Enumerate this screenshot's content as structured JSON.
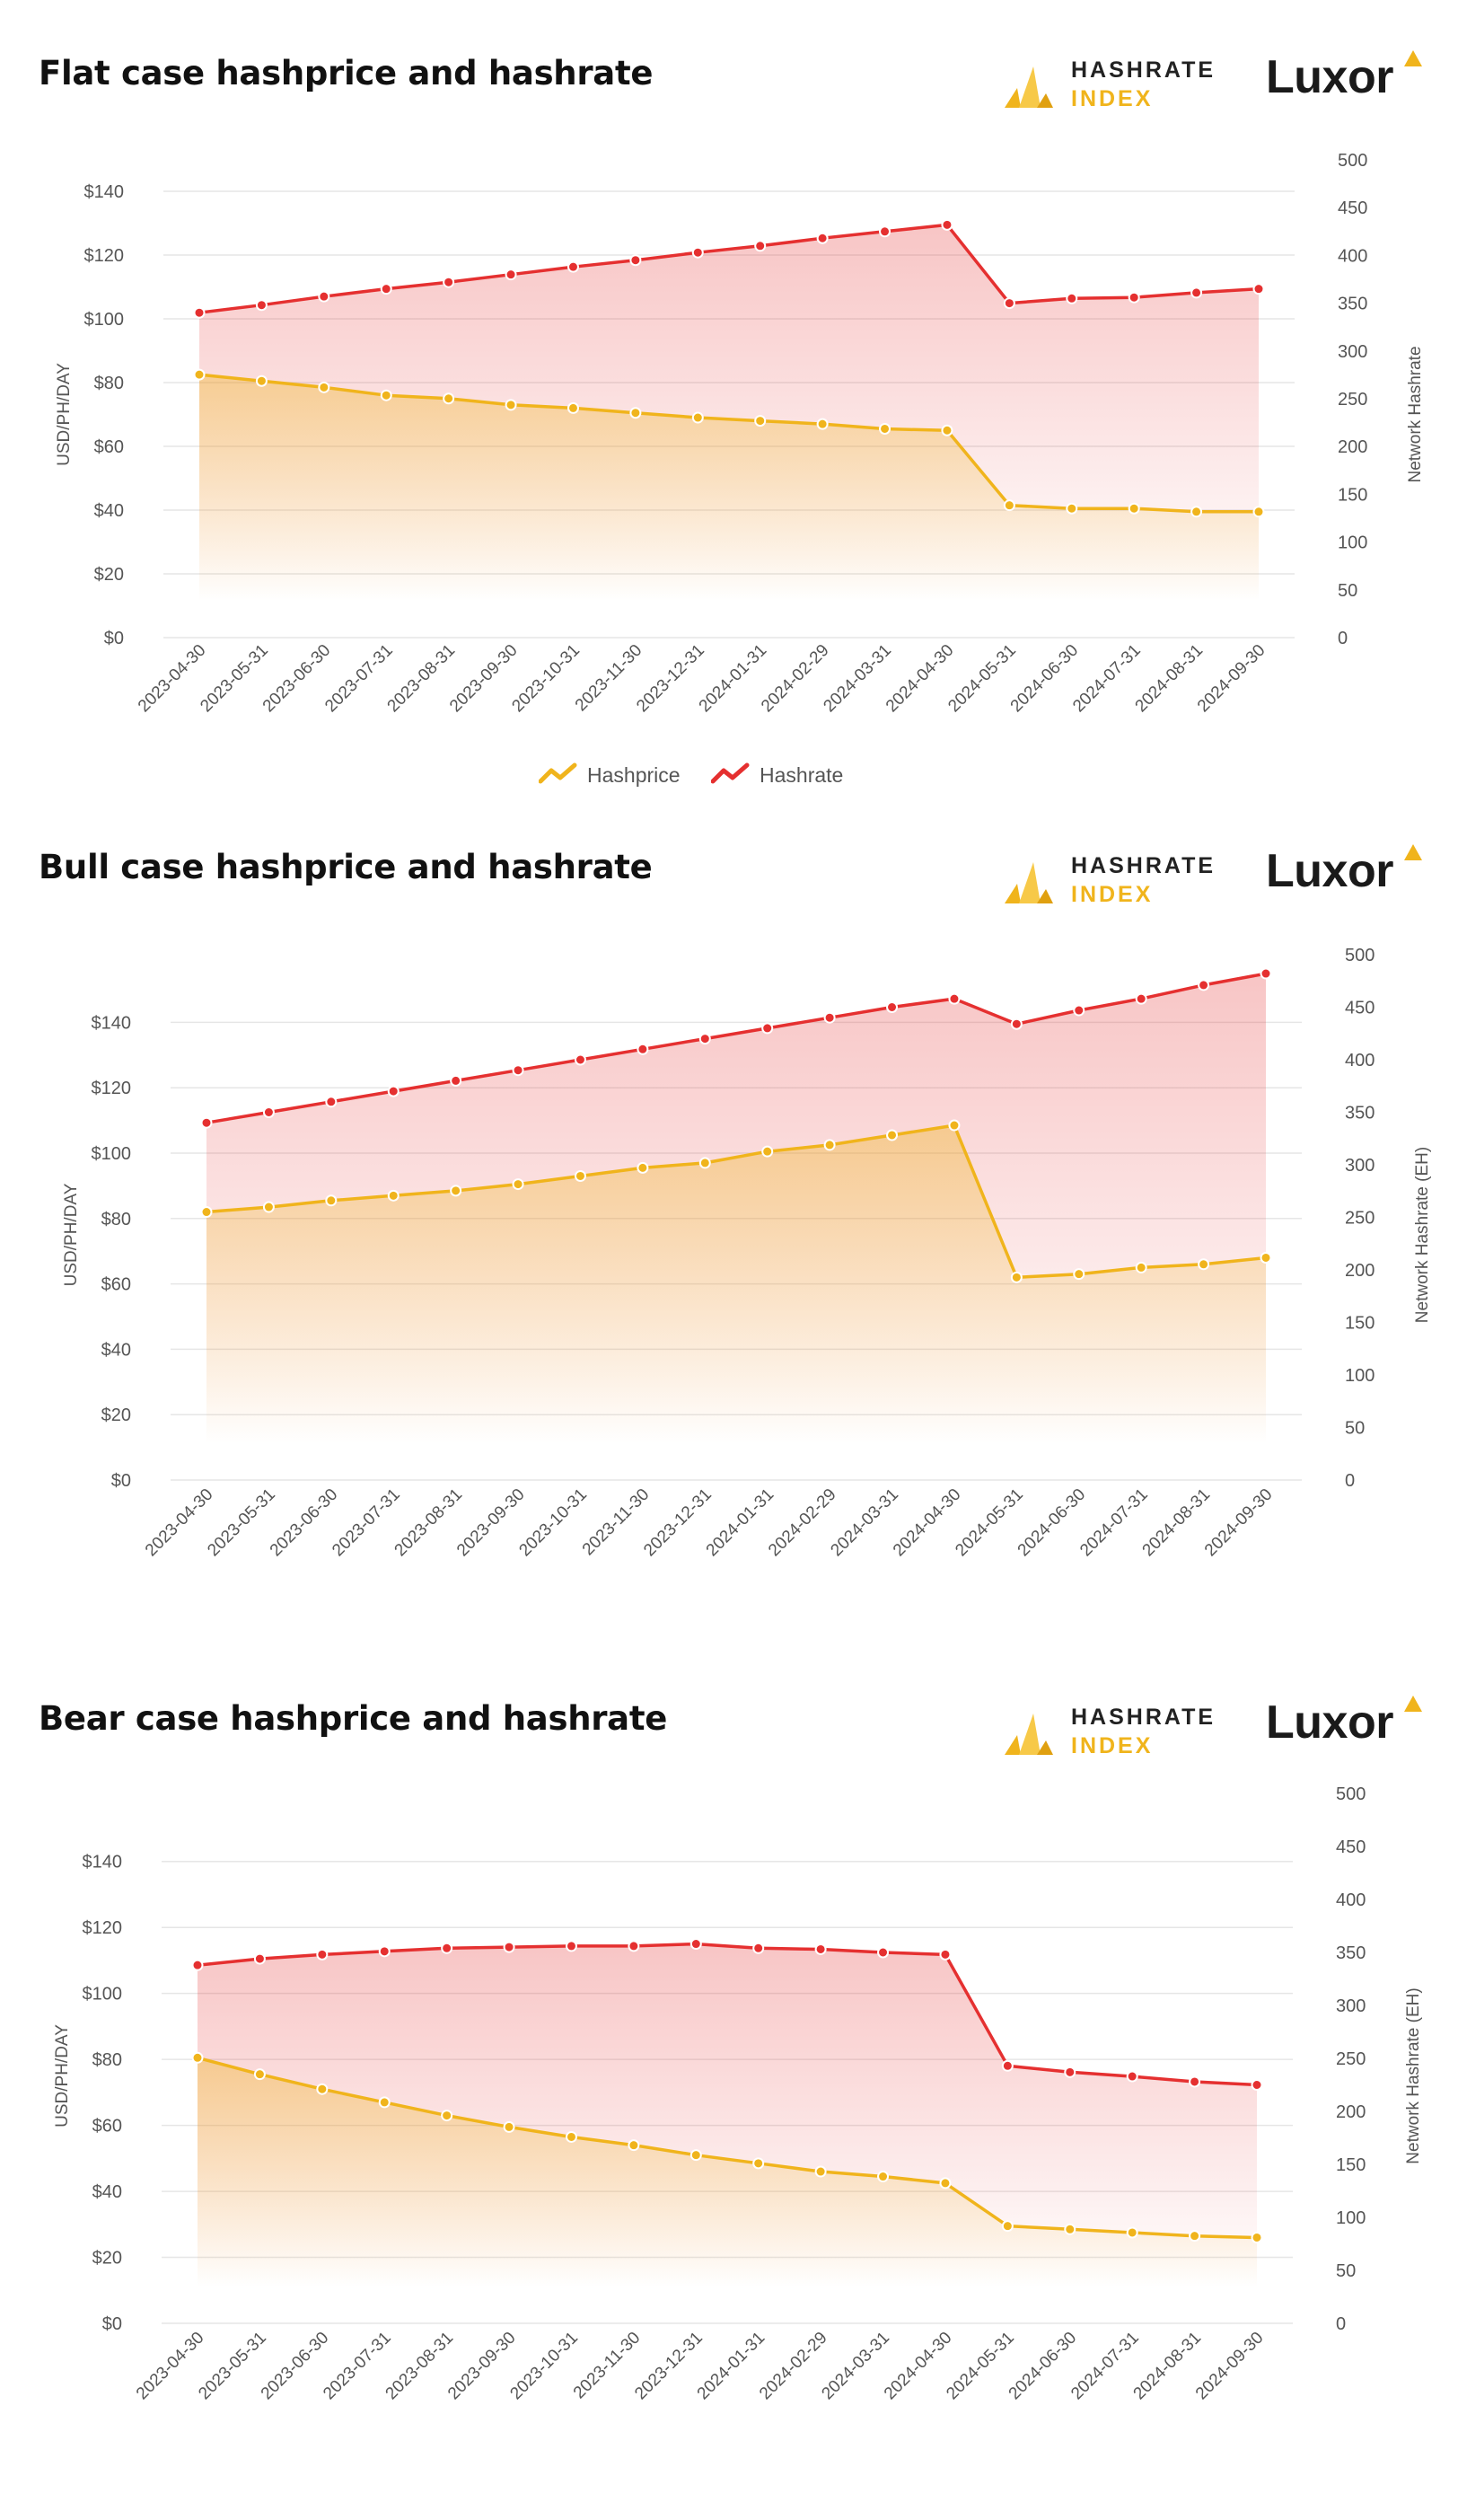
{
  "brand": {
    "hashrate_index_word1": "HASHRATE",
    "hashrate_index_word2": "INDEX",
    "luxor": "Luxor"
  },
  "colors": {
    "hashprice": "#f0b41c",
    "hashrate": "#e53030",
    "grid": "#e6e6e6",
    "axis_text": "#555555"
  },
  "legend": {
    "hashprice": "Hashprice",
    "hashrate": "Hashrate"
  },
  "chart_data": [
    {
      "type": "line",
      "title": "Flat case hashprice and hashrate",
      "x": [
        "2023-04-30",
        "2023-05-31",
        "2023-06-30",
        "2023-07-31",
        "2023-08-31",
        "2023-09-30",
        "2023-10-31",
        "2023-11-30",
        "2023-12-31",
        "2024-01-31",
        "2024-02-29",
        "2024-03-31",
        "2024-04-30",
        "2024-05-31",
        "2024-06-30",
        "2024-07-31",
        "2024-08-31",
        "2024-09-30"
      ],
      "ylabel_left": "USD/PH/DAY",
      "ylabel_right": "Network Hashrate",
      "ylim_left": [
        0,
        140
      ],
      "ylim_right": [
        0,
        500
      ],
      "yticks_left": [
        "$0",
        "$20",
        "$40",
        "$60",
        "$80",
        "$100",
        "$120",
        "$140"
      ],
      "yticks_right": [
        "0",
        "50",
        "100",
        "150",
        "200",
        "250",
        "300",
        "350",
        "400",
        "450",
        "500"
      ],
      "series": [
        {
          "name": "Hashprice",
          "axis": "left",
          "values": [
            82.5,
            80.5,
            78.5,
            76,
            75,
            73,
            72,
            70.5,
            69,
            68,
            67,
            65.5,
            65,
            41.5,
            40.5,
            40.5,
            39.5,
            39.5
          ]
        },
        {
          "name": "Hashrate",
          "axis": "right",
          "values": [
            340,
            348,
            357,
            365,
            372,
            380,
            388,
            395,
            403,
            410,
            418,
            425,
            432,
            350,
            355,
            356,
            361,
            365
          ]
        }
      ],
      "legend": "bottom-center",
      "grid": true
    },
    {
      "type": "line",
      "title": "Bull case hashprice and hashrate",
      "x": [
        "2023-04-30",
        "2023-05-31",
        "2023-06-30",
        "2023-07-31",
        "2023-08-31",
        "2023-09-30",
        "2023-10-31",
        "2023-11-30",
        "2023-12-31",
        "2024-01-31",
        "2024-02-29",
        "2024-03-31",
        "2024-04-30",
        "2024-05-31",
        "2024-06-30",
        "2024-07-31",
        "2024-08-31",
        "2024-09-30"
      ],
      "ylabel_left": "USD/PH/DAY",
      "ylabel_right": "Network Hashrate (EH)",
      "ylim_left": [
        0,
        150
      ],
      "ylim_right": [
        0,
        500
      ],
      "yticks_left": [
        "$0",
        "$20",
        "$40",
        "$60",
        "$80",
        "$100",
        "$120",
        "$140"
      ],
      "yticks_right": [
        "0",
        "50",
        "100",
        "150",
        "200",
        "250",
        "300",
        "350",
        "400",
        "450",
        "500"
      ],
      "series": [
        {
          "name": "Hashprice",
          "axis": "left",
          "values": [
            82,
            83.5,
            85.5,
            87,
            88.5,
            90.5,
            93,
            95.5,
            97,
            100.5,
            102.5,
            105.5,
            108.5,
            62,
            63,
            65,
            66,
            68
          ]
        },
        {
          "name": "Hashrate",
          "axis": "right",
          "values": [
            340,
            350,
            360,
            370,
            380,
            390,
            400,
            410,
            420,
            430,
            440,
            450,
            458,
            434,
            447,
            458,
            471,
            482
          ]
        }
      ],
      "grid": true
    },
    {
      "type": "line",
      "title": "Bear case hashprice and hashrate",
      "x": [
        "2023-04-30",
        "2023-05-31",
        "2023-06-30",
        "2023-07-31",
        "2023-08-31",
        "2023-09-30",
        "2023-10-31",
        "2023-11-30",
        "2023-12-31",
        "2024-01-31",
        "2024-02-29",
        "2024-03-31",
        "2024-04-30",
        "2024-05-31",
        "2024-06-30",
        "2024-07-31",
        "2024-08-31",
        "2024-09-30"
      ],
      "ylabel_left": "USD/PH/DAY",
      "ylabel_right": "Network Hashrate (EH)",
      "ylim_left": [
        0,
        150
      ],
      "ylim_right": [
        0,
        500
      ],
      "yticks_left": [
        "$0",
        "$20",
        "$40",
        "$60",
        "$80",
        "$100",
        "$120",
        "$140"
      ],
      "yticks_right": [
        "0",
        "50",
        "100",
        "150",
        "200",
        "250",
        "300",
        "350",
        "400",
        "450",
        "500"
      ],
      "series": [
        {
          "name": "Hashprice",
          "axis": "left",
          "values": [
            80.5,
            75.5,
            71,
            67,
            63,
            59.5,
            56.5,
            54,
            51,
            48.5,
            46,
            44.5,
            42.5,
            29.5,
            28.5,
            27.5,
            26.5,
            26
          ]
        },
        {
          "name": "Hashrate",
          "axis": "right",
          "values": [
            338,
            344,
            348,
            351,
            354,
            355,
            356,
            356,
            358,
            354,
            353,
            350,
            348,
            243,
            237,
            233,
            228,
            225
          ]
        }
      ],
      "grid": true
    }
  ]
}
